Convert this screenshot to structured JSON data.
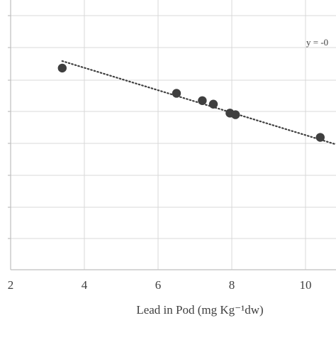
{
  "colors": {
    "background": "#ffffff",
    "gridline": "#d9d9d9",
    "axis": "#bfbfbf",
    "marker": "#3f3f3f",
    "trendline": "#3f3f3f",
    "tick_text": "#404040",
    "label_text": "#404040"
  },
  "chart_data": {
    "type": "scatter",
    "title": "",
    "xlabel": "Lead in Pod (mg Kg⁻¹dw)",
    "ylabel": "",
    "xlim": [
      2,
      10.8
    ],
    "x_ticks": [
      2,
      4,
      6,
      8,
      10
    ],
    "grid": true,
    "legend": "none",
    "series": [
      {
        "marker": "circle",
        "x": [
          3.4,
          6.5,
          7.2,
          7.5,
          7.95,
          8.1,
          10.4
        ],
        "y": [
          7.38,
          6.59,
          6.36,
          6.25,
          5.97,
          5.92,
          5.21
        ]
      }
    ],
    "trendline": {
      "style": "dotted",
      "x": [
        3.4,
        10.8
      ],
      "y": [
        7.6,
        5.0
      ]
    },
    "trendline_label": "y = -0"
  }
}
